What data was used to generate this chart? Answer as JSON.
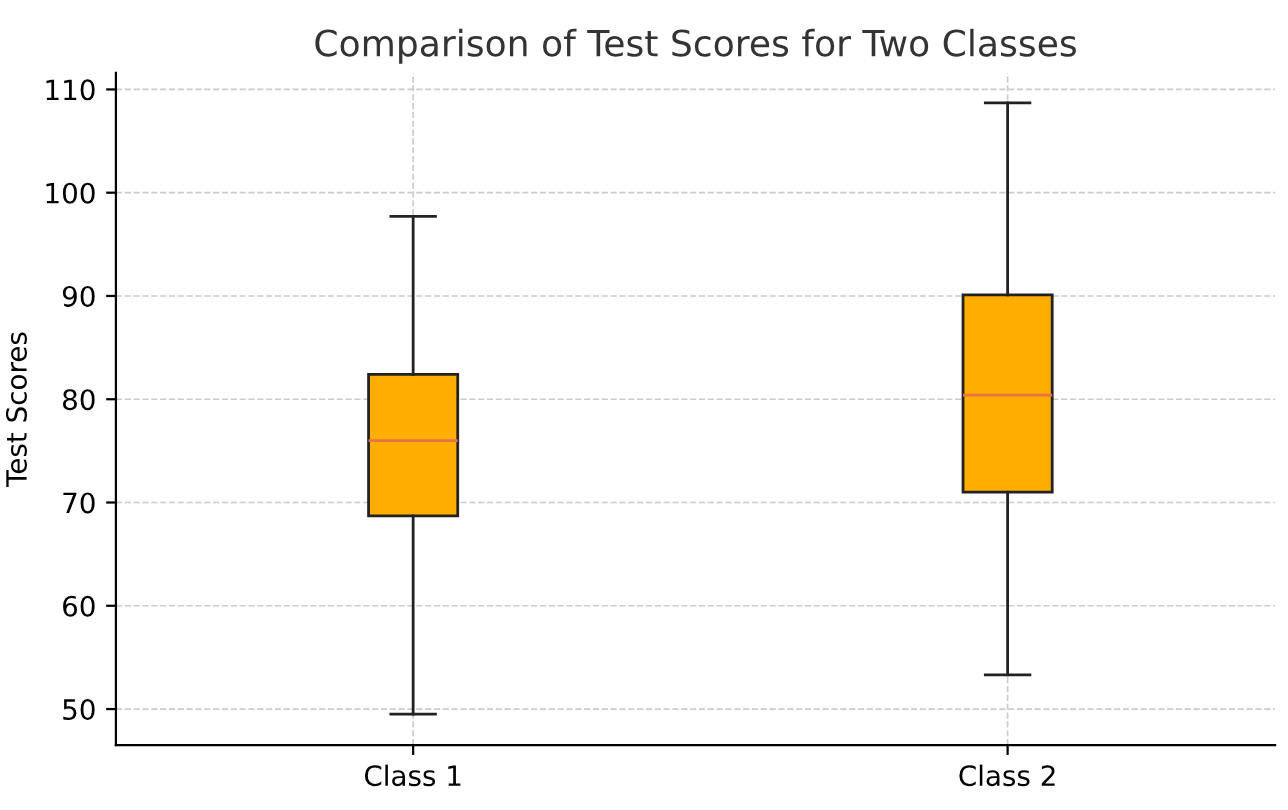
{
  "chart_data": {
    "type": "box",
    "title": "Comparison of Test Scores for Two Classes",
    "ylabel": "Test Scores",
    "categories": [
      "Class 1",
      "Class 2"
    ],
    "boxes": [
      {
        "low": 49.5,
        "q1": 68.7,
        "median": 76.0,
        "q3": 82.4,
        "high": 97.7
      },
      {
        "low": 53.3,
        "q1": 71.0,
        "median": 80.4,
        "q3": 90.1,
        "high": 108.7
      }
    ],
    "color": "#ffae00",
    "ylim": [
      46.5,
      111.6
    ],
    "yticks": [
      50,
      60,
      70,
      80,
      90,
      100,
      110
    ],
    "grid": true
  }
}
